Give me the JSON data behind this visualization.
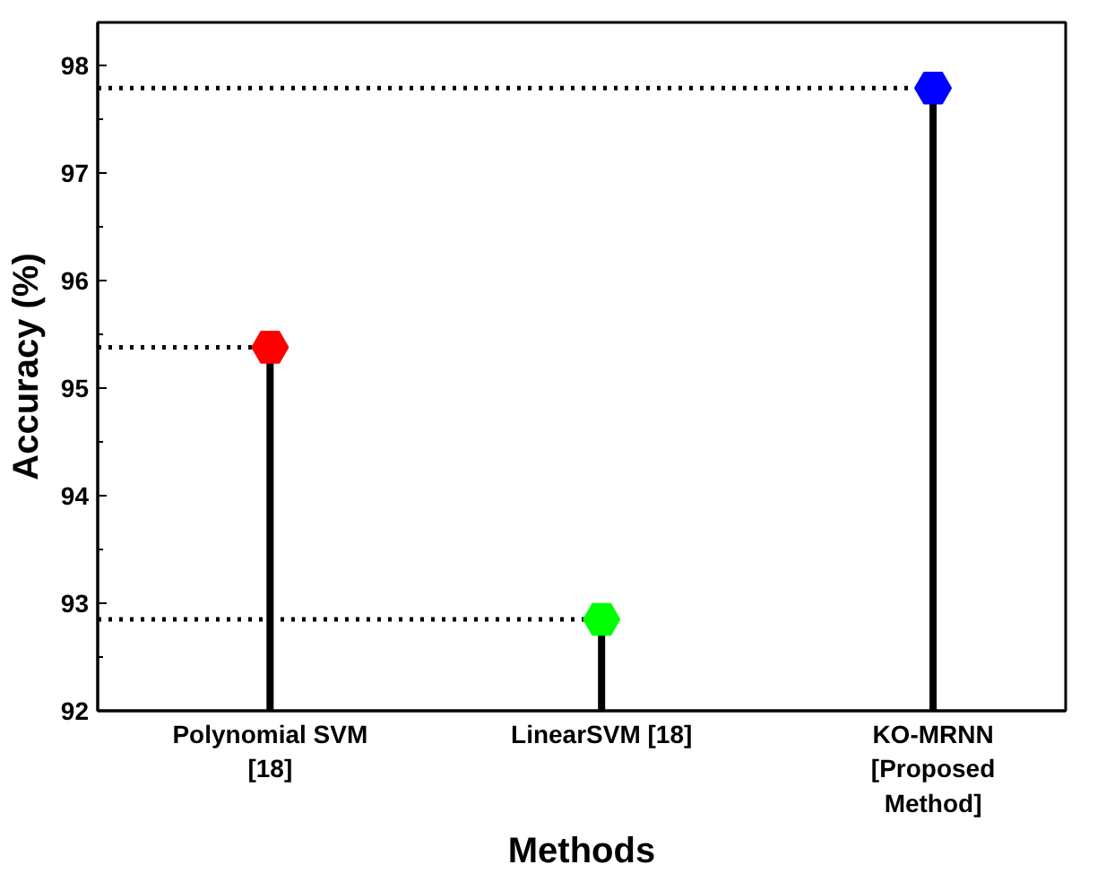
{
  "chart_data": {
    "type": "lollipop",
    "xlabel": "Methods",
    "ylabel": "Accuracy (%)",
    "categories": [
      "Polynomial SVM\n[18]",
      "LinearSVM [18]",
      "KO-MRNN\n[Proposed\nMethod]"
    ],
    "values": [
      95.38,
      92.85,
      97.79
    ],
    "colors": [
      "#ff0000",
      "#00ff00",
      "#0000ff"
    ],
    "ylim": [
      92,
      98.4
    ],
    "yticks": [
      92,
      93,
      94,
      95,
      96,
      97,
      98
    ],
    "marker": "circle",
    "ref_lines": [
      {
        "axis": "y",
        "value": 95.38,
        "line_style": "dotted",
        "color": "#000000"
      },
      {
        "axis": "y",
        "value": 92.85,
        "line_style": "dotted",
        "color": "#000000"
      },
      {
        "axis": "y",
        "value": 97.79,
        "line_style": "dotted",
        "color": "#000000"
      }
    ]
  }
}
